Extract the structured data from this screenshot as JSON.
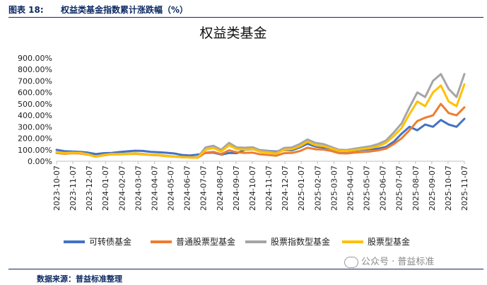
{
  "header": {
    "figure_no": "图表 18:",
    "figure_title": "权益类基金指数累计涨跌幅（%）"
  },
  "footer": {
    "source": "数据来源：普益标准整理"
  },
  "watermark": {
    "text": "公众号 · 普益标准",
    "icon": "wechat-icon"
  },
  "chart_data": {
    "type": "line",
    "title": "权益类基金",
    "xlabel": "",
    "ylabel": "",
    "ylim": [
      0,
      900
    ],
    "y_ticks": [
      "0.00%",
      "100.00%",
      "200.00%",
      "300.00%",
      "400.00%",
      "500.00%",
      "600.00%",
      "700.00%",
      "800.00%",
      "900.00%"
    ],
    "x_ticks": [
      "2023-10-07",
      "2023-11-07",
      "2023-12-07",
      "2024-01-07",
      "2024-02-07",
      "2024-03-07",
      "2024-04-07",
      "2024-05-07",
      "2024-06-07",
      "2024-07-07",
      "2024-08-07",
      "2024-09-07",
      "2024-10-07",
      "2024-11-07",
      "2024-12-07",
      "2025-01-07",
      "2025-02-07",
      "2025-03-07",
      "2025-04-07",
      "2025-05-07",
      "2025-06-07",
      "2025-07-07",
      "2025-08-07",
      "2025-09-07",
      "2025-10-07",
      "2025-11-07"
    ],
    "grid": false,
    "legend_position": "bottom",
    "series": [
      {
        "name": "可转债基金",
        "color": "#4472c4",
        "values": [
          100,
          88,
          85,
          82,
          75,
          62,
          70,
          72,
          80,
          86,
          92,
          90,
          82,
          78,
          74,
          68,
          55,
          50,
          58,
          72,
          75,
          58,
          72,
          70,
          100,
          105,
          96,
          90,
          85,
          98,
          95,
          120,
          152,
          128,
          120,
          110,
          88,
          86,
          95,
          100,
          105,
          110,
          125,
          170,
          240,
          300,
          270,
          320,
          300,
          360,
          320,
          300,
          370
        ]
      },
      {
        "name": "普通股票型基金",
        "color": "#ed7d31",
        "values": [
          72,
          65,
          70,
          68,
          58,
          40,
          52,
          60,
          60,
          62,
          65,
          60,
          55,
          52,
          45,
          40,
          35,
          32,
          30,
          75,
          82,
          62,
          95,
          78,
          72,
          75,
          60,
          55,
          48,
          70,
          72,
          88,
          118,
          105,
          102,
          90,
          70,
          68,
          75,
          80,
          85,
          95,
          110,
          150,
          200,
          270,
          350,
          380,
          400,
          500,
          420,
          400,
          470
        ]
      },
      {
        "name": "股票指数型基金",
        "color": "#a5a5a5",
        "values": [
          80,
          72,
          76,
          74,
          62,
          42,
          56,
          64,
          64,
          66,
          70,
          64,
          58,
          56,
          48,
          42,
          38,
          35,
          33,
          120,
          135,
          100,
          160,
          120,
          118,
          122,
          95,
          88,
          78,
          115,
          120,
          150,
          190,
          160,
          150,
          125,
          100,
          98,
          110,
          120,
          130,
          150,
          180,
          250,
          330,
          470,
          600,
          560,
          700,
          760,
          630,
          560,
          760
        ]
      },
      {
        "name": "股票型基金",
        "color": "#ffc000",
        "values": [
          78,
          70,
          74,
          72,
          60,
          40,
          54,
          62,
          62,
          64,
          68,
          62,
          56,
          54,
          46,
          40,
          36,
          33,
          31,
          100,
          115,
          85,
          140,
          105,
          102,
          106,
          82,
          76,
          66,
          100,
          105,
          130,
          170,
          140,
          132,
          112,
          90,
          88,
          98,
          106,
          115,
          130,
          160,
          220,
          290,
          410,
          520,
          480,
          600,
          660,
          520,
          480,
          670
        ]
      }
    ]
  }
}
